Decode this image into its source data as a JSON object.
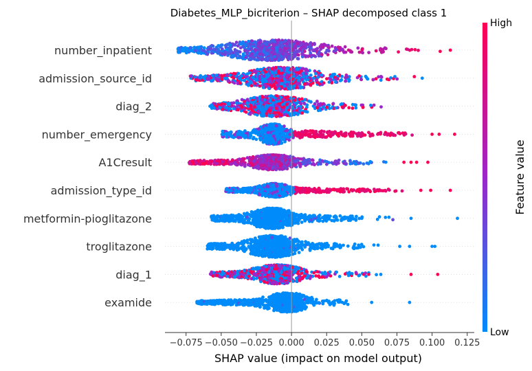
{
  "chart_data": {
    "type": "scatter",
    "title": "Diabetes_MLP_bicriterion – SHAP decomposed class 1",
    "xlabel": "SHAP value (impact on model output)",
    "xlim": [
      -0.09,
      0.13
    ],
    "x_ticks": [
      -0.075,
      -0.05,
      -0.025,
      0.0,
      0.025,
      0.05,
      0.075,
      0.1,
      0.125
    ],
    "x_tick_labels": [
      "−0.075",
      "−0.050",
      "−0.025",
      "0.000",
      "0.025",
      "0.050",
      "0.075",
      "0.100",
      "0.125"
    ],
    "features": [
      {
        "name": "number_inpatient",
        "min": -0.081,
        "max": 0.107,
        "peak": -0.014,
        "spread": 0.038,
        "width": 15,
        "color_mode": "increasing",
        "outliers": [
          0.113
        ]
      },
      {
        "name": "admission_source_id",
        "min": -0.072,
        "max": 0.09,
        "peak": -0.006,
        "spread": 0.03,
        "width": 16,
        "color_mode": "mixed",
        "outliers": [
          0.093
        ]
      },
      {
        "name": "diag_2",
        "min": -0.057,
        "max": 0.066,
        "peak": -0.012,
        "spread": 0.027,
        "width": 15,
        "color_mode": "mixed",
        "outliers": [
          -0.058
        ]
      },
      {
        "name": "number_emergency",
        "min": -0.05,
        "max": 0.09,
        "peak": -0.013,
        "spread": 0.012,
        "width": 15,
        "color_mode": "step",
        "outliers": [
          0.1,
          0.105,
          0.116
        ]
      },
      {
        "name": "A1Cresult",
        "min": -0.073,
        "max": 0.075,
        "peak": -0.013,
        "spread": 0.02,
        "width": 11,
        "color_mode": "decreasing",
        "outliers": [
          0.08,
          0.085,
          0.089,
          0.097
        ]
      },
      {
        "name": "admission_type_id",
        "min": -0.047,
        "max": 0.08,
        "peak": -0.012,
        "spread": 0.013,
        "width": 10,
        "color_mode": "step",
        "outliers": [
          0.092,
          0.099,
          0.113
        ]
      },
      {
        "name": "metformin-pioglitazone",
        "min": -0.057,
        "max": 0.074,
        "peak": -0.014,
        "spread": 0.018,
        "width": 15,
        "color_mode": "low",
        "outliers": [
          0.085,
          0.118
        ]
      },
      {
        "name": "troglitazone",
        "min": -0.06,
        "max": 0.067,
        "peak": -0.013,
        "spread": 0.02,
        "width": 16,
        "color_mode": "low",
        "outliers": [
          0.077,
          0.084,
          0.1,
          0.102
        ]
      },
      {
        "name": "diag_1",
        "min": -0.058,
        "max": 0.07,
        "peak": -0.01,
        "spread": 0.02,
        "width": 14,
        "color_mode": "mixed",
        "outliers": [
          0.085,
          0.104
        ]
      },
      {
        "name": "examide",
        "min": -0.068,
        "max": 0.05,
        "peak": -0.003,
        "spread": 0.018,
        "width": 14,
        "color_mode": "low",
        "outliers": [
          0.057,
          0.084
        ]
      }
    ],
    "colorbar": {
      "label": "Feature value",
      "high": "High",
      "low": "Low",
      "high_color": "#ff0052",
      "mid_color": "#9c26c9",
      "low_color": "#008bfb"
    },
    "grid": false,
    "legend": "colorbar-right"
  }
}
